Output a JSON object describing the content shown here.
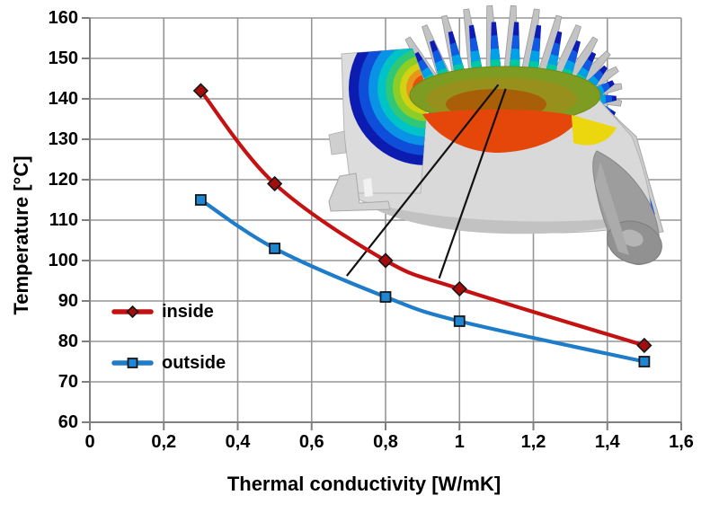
{
  "chart_data": {
    "type": "line",
    "title": "",
    "xlabel": "Thermal conductivity [W/mK]",
    "ylabel": "Temperature [°C]",
    "xlim": [
      0,
      1.6
    ],
    "ylim": [
      60,
      160
    ],
    "grid": true,
    "legend_position": "inside-left",
    "xticks": [
      {
        "value": 0.0,
        "label": "0"
      },
      {
        "value": 0.2,
        "label": "0,2"
      },
      {
        "value": 0.4,
        "label": "0,4"
      },
      {
        "value": 0.6,
        "label": "0,6"
      },
      {
        "value": 0.8,
        "label": "0,8"
      },
      {
        "value": 1.0,
        "label": "1"
      },
      {
        "value": 1.2,
        "label": "1,2"
      },
      {
        "value": 1.4,
        "label": "1,4"
      },
      {
        "value": 1.6,
        "label": "1,6"
      }
    ],
    "yticks": [
      {
        "value": 60,
        "label": "60"
      },
      {
        "value": 70,
        "label": "70"
      },
      {
        "value": 80,
        "label": "80"
      },
      {
        "value": 90,
        "label": "90"
      },
      {
        "value": 100,
        "label": "100"
      },
      {
        "value": 110,
        "label": "110"
      },
      {
        "value": 120,
        "label": "120"
      },
      {
        "value": 130,
        "label": "130"
      },
      {
        "value": 140,
        "label": "140"
      },
      {
        "value": 150,
        "label": "150"
      },
      {
        "value": 160,
        "label": "160"
      }
    ],
    "x": [
      0.3,
      0.5,
      0.8,
      1.0,
      1.5
    ],
    "series": [
      {
        "name": "inside",
        "marker": "diamond",
        "color": "#C41111",
        "marker_color": "#A50D0D",
        "values": [
          142,
          119,
          100,
          93,
          79
        ]
      },
      {
        "name": "outside",
        "marker": "square",
        "color": "#1E7CC8",
        "marker_color": "#1E86D2",
        "values": [
          115,
          103,
          91,
          85,
          75
        ]
      }
    ],
    "annotations": {
      "callout_color": "#111111",
      "callouts": [
        {
          "from_x": 1.105,
          "from_y": 143.5,
          "to_x": 0.695,
          "to_y": 96.2
        },
        {
          "from_x": 1.125,
          "from_y": 142.5,
          "to_x": 0.945,
          "to_y": 95.6
        }
      ]
    },
    "illustration": {
      "name": "heatsink-thermal-render",
      "description": "Cut-away CAD render of LED lamp heatsink with thermal contour colors"
    }
  }
}
